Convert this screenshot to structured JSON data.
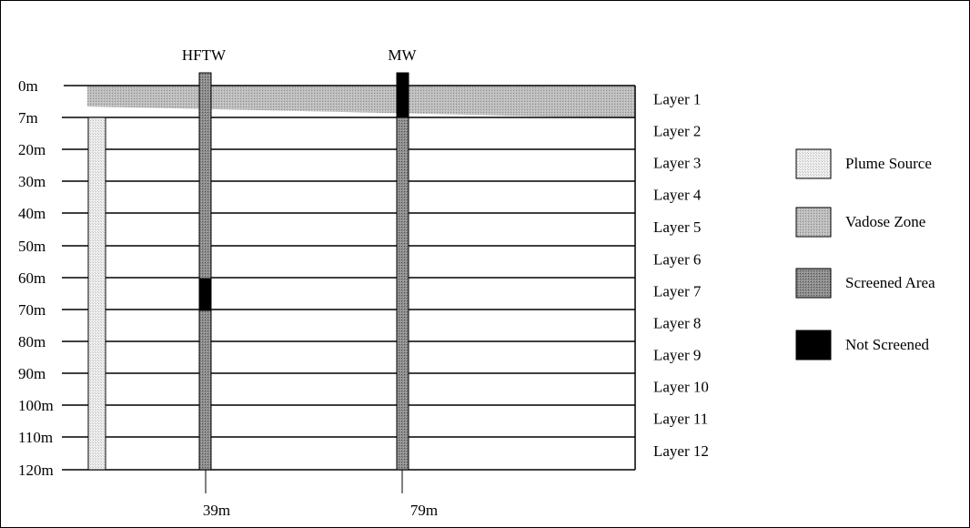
{
  "wells": {
    "hftw": {
      "label": "HFTW",
      "position": "39m"
    },
    "mw": {
      "label": "MW",
      "position": "79m"
    }
  },
  "depth_labels": [
    "0m",
    "7m",
    "20m",
    "30m",
    "40m",
    "50m",
    "60m",
    "70m",
    "80m",
    "90m",
    "100m",
    "110m",
    "120m"
  ],
  "layer_labels": [
    "Layer 1",
    "Layer 2",
    "Layer 3",
    "Layer 4",
    "Layer 5",
    "Layer 6",
    "Layer 7",
    "Layer 8",
    "Layer 9",
    "Layer 10",
    "Layer 11",
    "Layer 12"
  ],
  "legend": {
    "plume_source": "Plume Source",
    "vadose_zone": "Vadose Zone",
    "screened_area": "Screened Area",
    "not_screened": "Not Screened"
  },
  "colors": {
    "plume_source": "#e0e0e0",
    "vadose_zone": "#b4b4b4",
    "screened_area": "#8c8c8c",
    "not_screened": "#000000"
  }
}
